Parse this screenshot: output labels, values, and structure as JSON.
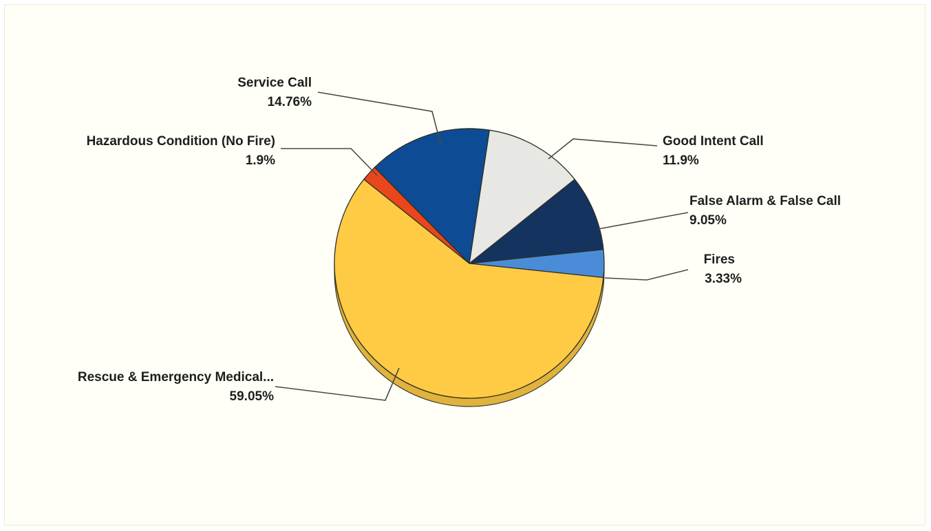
{
  "chart_data": {
    "type": "pie",
    "title": "",
    "slices": [
      {
        "label": "Fires",
        "value": 3.33,
        "display": "3.33%",
        "color": "#4a8cd8"
      },
      {
        "label": "False Alarm & False Call",
        "value": 9.05,
        "display": "9.05%",
        "color": "#15335f"
      },
      {
        "label": "Good Intent Call",
        "value": 11.9,
        "display": "11.9%",
        "color": "#e7e7e4"
      },
      {
        "label": "Service Call",
        "value": 14.76,
        "display": "14.76%",
        "color": "#0d4c95"
      },
      {
        "label": "Hazardous Condition (No Fire)",
        "value": 1.9,
        "display": "1.9%",
        "color": "#e8461c"
      },
      {
        "label": "Rescue & Emergency Medical...",
        "value": 59.05,
        "display": "59.05%",
        "color": "#ffcb45"
      }
    ]
  }
}
